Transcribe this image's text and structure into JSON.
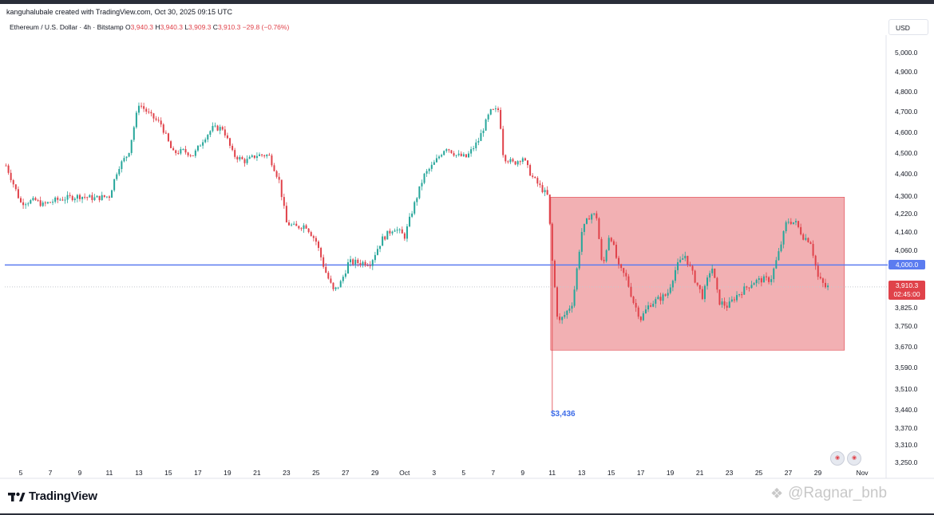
{
  "header": {
    "credit": "kanguhalubale created with TradingView.com, Oct 30, 2025 09:15 UTC",
    "symbol": "Ethereum / U.S. Dollar · 4h · Bitstamp",
    "o_label": "O",
    "o_value": "3,940.3",
    "h_label": "H",
    "h_value": "3,940.3",
    "l_label": "L",
    "l_value": "3,909.3",
    "c_label": "C",
    "c_value": "3,910.3",
    "change": "−29.8 (−0.76%)",
    "currency": "USD"
  },
  "footer": {
    "logo": "TradingView",
    "watermark": "@Ragnar_bnb"
  },
  "colors": {
    "up": "#26a69a",
    "down": "#e0424a",
    "level_line": "#5b7cf0",
    "range_box": "rgba(224,66,74,0.42)",
    "low_label": "#3d6ce8"
  },
  "chart_data": {
    "type": "candlestick",
    "ylim": [
      3210,
      5060
    ],
    "y_ticks": [
      "5,000.0",
      "4,900.0",
      "4,800.0",
      "4,700.0",
      "4,600.0",
      "4,500.0",
      "4,400.0",
      "4,300.0",
      "4,220.0",
      "4,140.0",
      "4,060.0",
      "3,825.0",
      "3,750.0",
      "3,670.0",
      "3,590.0",
      "3,510.0",
      "3,440.0",
      "3,370.0",
      "3,310.0",
      "3,250.0"
    ],
    "y_tick_values": [
      5000,
      4900,
      4800,
      4700,
      4600,
      4500,
      4400,
      4300,
      4220,
      4140,
      4060,
      3825,
      3750,
      3670,
      3590,
      3510,
      3440,
      3370,
      3310,
      3250
    ],
    "x_ticks": [
      "5",
      "7",
      "9",
      "11",
      "13",
      "15",
      "17",
      "19",
      "21",
      "23",
      "25",
      "27",
      "29",
      "Oct",
      "3",
      "5",
      "7",
      "9",
      "11",
      "13",
      "15",
      "17",
      "19",
      "21",
      "23",
      "25",
      "27",
      "29",
      "Nov"
    ],
    "x_tick_days": [
      5,
      7,
      9,
      11,
      13,
      15,
      17,
      19,
      21,
      23,
      25,
      27,
      29,
      31,
      33,
      35,
      37,
      39,
      41,
      43,
      45,
      47,
      49,
      51,
      53,
      55,
      57,
      59,
      62
    ],
    "day_range": [
      3.9,
      62
    ],
    "closes_path": [
      [
        4.0,
        4440
      ],
      [
        5.0,
        4270
      ],
      [
        6.0,
        4280
      ],
      [
        6.5,
        4260
      ],
      [
        7.3,
        4280
      ],
      [
        8.0,
        4290
      ],
      [
        9.0,
        4300
      ],
      [
        10.0,
        4290
      ],
      [
        11.0,
        4300
      ],
      [
        11.6,
        4430
      ],
      [
        12.3,
        4500
      ],
      [
        13.0,
        4740
      ],
      [
        13.8,
        4680
      ],
      [
        14.5,
        4640
      ],
      [
        15.3,
        4500
      ],
      [
        16.0,
        4510
      ],
      [
        16.7,
        4490
      ],
      [
        17.4,
        4570
      ],
      [
        18.0,
        4620
      ],
      [
        18.7,
        4620
      ],
      [
        19.4,
        4490
      ],
      [
        20.2,
        4460
      ],
      [
        21.0,
        4490
      ],
      [
        21.8,
        4490
      ],
      [
        22.5,
        4370
      ],
      [
        23.0,
        4180
      ],
      [
        23.6,
        4160
      ],
      [
        24.3,
        4170
      ],
      [
        25.0,
        4100
      ],
      [
        25.6,
        3980
      ],
      [
        26.2,
        3890
      ],
      [
        26.7,
        3930
      ],
      [
        27.2,
        4010
      ],
      [
        28.0,
        4010
      ],
      [
        28.7,
        4010
      ],
      [
        29.5,
        4110
      ],
      [
        30.3,
        4160
      ],
      [
        31.0,
        4120
      ],
      [
        31.6,
        4250
      ],
      [
        32.3,
        4390
      ],
      [
        33.0,
        4450
      ],
      [
        33.8,
        4530
      ],
      [
        34.5,
        4490
      ],
      [
        35.2,
        4480
      ],
      [
        36.0,
        4560
      ],
      [
        36.8,
        4700
      ],
      [
        37.4,
        4710
      ],
      [
        37.7,
        4480
      ],
      [
        38.4,
        4450
      ],
      [
        39.0,
        4480
      ],
      [
        39.6,
        4390
      ],
      [
        40.2,
        4340
      ],
      [
        40.7,
        4300
      ],
      [
        41.0,
        4020
      ],
      [
        41.4,
        3760
      ],
      [
        41.9,
        3800
      ],
      [
        42.4,
        3850
      ],
      [
        43.0,
        4140
      ],
      [
        43.6,
        4220
      ],
      [
        44.0,
        4210
      ],
      [
        44.4,
        3980
      ],
      [
        44.9,
        4140
      ],
      [
        45.5,
        3990
      ],
      [
        46.0,
        3950
      ],
      [
        46.5,
        3850
      ],
      [
        47.0,
        3780
      ],
      [
        47.6,
        3840
      ],
      [
        48.2,
        3860
      ],
      [
        48.8,
        3880
      ],
      [
        49.4,
        3990
      ],
      [
        50.0,
        4040
      ],
      [
        50.6,
        3950
      ],
      [
        51.2,
        3870
      ],
      [
        51.8,
        4000
      ],
      [
        52.3,
        3850
      ],
      [
        52.9,
        3830
      ],
      [
        53.4,
        3870
      ],
      [
        54.0,
        3900
      ],
      [
        54.6,
        3930
      ],
      [
        55.2,
        3940
      ],
      [
        55.8,
        3940
      ],
      [
        56.4,
        4060
      ],
      [
        56.9,
        4190
      ],
      [
        57.5,
        4180
      ],
      [
        58.0,
        4120
      ],
      [
        58.5,
        4100
      ],
      [
        59.0,
        3950
      ],
      [
        59.5,
        3910
      ],
      [
        59.8,
        3910
      ]
    ],
    "range_box": {
      "day_start": 40.9,
      "day_end": 60.8,
      "price_top": 4295,
      "price_bottom": 3657
    },
    "level_4000": 4000,
    "last_price": 3910.3,
    "last_price_label": "3,910.3",
    "last_countdown": "02:45:00",
    "level_label": "4,000.0",
    "low_marker": {
      "day": 40.9,
      "price": 3436,
      "label": "$3,436"
    }
  }
}
